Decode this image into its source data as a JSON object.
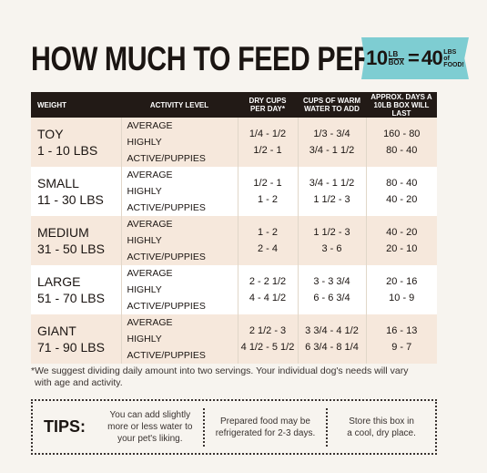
{
  "title": "HOW MUCH TO FEED PER DAY",
  "badge": {
    "left_num": "10",
    "left_unit_top": "LB",
    "left_unit_bottom": "BOX",
    "equals": "=",
    "right_num": "40",
    "right_unit_1": "LBS",
    "right_unit_2": "of",
    "right_unit_3": "FOOD!"
  },
  "table": {
    "headers": {
      "weight": "WEIGHT",
      "activity": "ACTIVITY LEVEL",
      "dry_1": "DRY CUPS",
      "dry_2": "PER DAY*",
      "water_1": "CUPS OF WARM",
      "water_2": "WATER TO ADD",
      "days_1": "APPROX. DAYS A",
      "days_2": "10LB BOX WILL LAST"
    },
    "rows": [
      {
        "size": "TOY",
        "range": "1 - 10 LBS",
        "act1": "AVERAGE",
        "act2": "HIGHLY ACTIVE/PUPPIES",
        "dry1": "1/4 - 1/2",
        "dry2": "1/2 - 1",
        "water1": "1/3 - 3/4",
        "water2": "3/4 - 1 1/2",
        "days1": "160 - 80",
        "days2": "80 - 40"
      },
      {
        "size": "SMALL",
        "range": "11 - 30 LBS",
        "act1": "AVERAGE",
        "act2": "HIGHLY ACTIVE/PUPPIES",
        "dry1": "1/2 - 1",
        "dry2": "1 - 2",
        "water1": "3/4 - 1 1/2",
        "water2": "1 1/2 - 3",
        "days1": "80 - 40",
        "days2": "40 - 20"
      },
      {
        "size": "MEDIUM",
        "range": "31 - 50 LBS",
        "act1": "AVERAGE",
        "act2": "HIGHLY ACTIVE/PUPPIES",
        "dry1": "1 - 2",
        "dry2": "2 - 4",
        "water1": "1 1/2 - 3",
        "water2": "3 - 6",
        "days1": "40 - 20",
        "days2": "20 - 10"
      },
      {
        "size": "LARGE",
        "range": "51 - 70 LBS",
        "act1": "AVERAGE",
        "act2": "HIGHLY ACTIVE/PUPPIES",
        "dry1": "2 - 2 1/2",
        "dry2": "4 - 4 1/2",
        "water1": "3 - 3 3/4",
        "water2": "6 - 6 3/4",
        "days1": "20 - 16",
        "days2": "10 - 9"
      },
      {
        "size": "GIANT",
        "range": "71 - 90 LBS",
        "act1": "AVERAGE",
        "act2": "HIGHLY ACTIVE/PUPPIES",
        "dry1": "2 1/2 - 3",
        "dry2": "4 1/2 - 5 1/2",
        "water1": "3 3/4 - 4 1/2",
        "water2": "6 3/4 - 8 1/4",
        "days1": "16 - 13",
        "days2": "9 - 7"
      }
    ]
  },
  "footnote_1": "*We suggest dividing daily amount into two servings. Your individual dog's needs will vary",
  "footnote_2": "with age and activity.",
  "tips": {
    "label": "TIPS:",
    "tip1_1": "You can add slightly",
    "tip1_2": "more or less water to",
    "tip1_3": "your pet's liking.",
    "tip2_1": "Prepared food may be",
    "tip2_2": "refrigerated for 2-3 days.",
    "tip3_1": "Store this box in",
    "tip3_2": "a cool, dry place."
  },
  "colors": {
    "header_bg": "#221a16",
    "shade_row": "#f6e8dc",
    "badge": "#7ecdd2",
    "background": "#f7f4ef"
  }
}
